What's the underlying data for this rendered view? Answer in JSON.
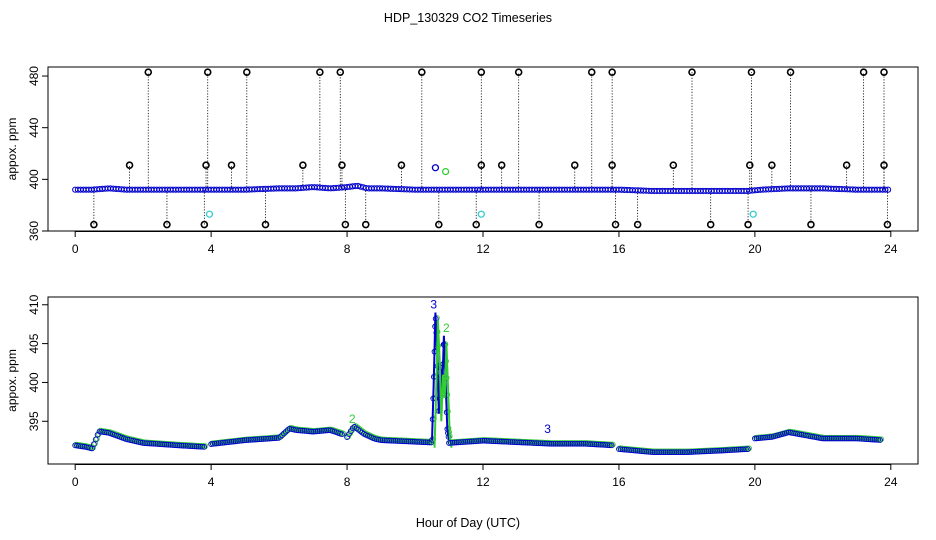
{
  "title": "HDP_130329  CO2 Timeseries",
  "xlabel": "Hour of Day (UTC)",
  "colors": {
    "black": "#000000",
    "blue": "#0000cc",
    "green": "#33cc33",
    "cyan": "#33cccc"
  },
  "chart_data": [
    {
      "type": "scatter",
      "panel": "top",
      "ylabel": "appox. ppm",
      "xlim": [
        -0.8,
        24.8
      ],
      "ylim": [
        360,
        487
      ],
      "xticks": [
        0,
        4,
        8,
        12,
        16,
        20,
        24
      ],
      "yticks": [
        360,
        400,
        440,
        480
      ],
      "baseline": {
        "x": [
          0,
          0.5,
          1,
          1.5,
          2,
          3,
          4,
          5,
          6,
          6.5,
          7,
          7.5,
          8,
          8.3,
          8.6,
          9,
          10,
          11,
          12,
          13,
          14,
          15,
          16,
          17,
          18,
          19,
          19.8,
          20.2,
          21,
          22,
          23,
          24
        ],
        "y": [
          392,
          392,
          393,
          392,
          392,
          392,
          392,
          392,
          393,
          393,
          394,
          393,
          394,
          395,
          393,
          393,
          392,
          392,
          392,
          392,
          392,
          392,
          392,
          391,
          391,
          391,
          391,
          392,
          393,
          393,
          392,
          392
        ]
      },
      "spikes_high": {
        "y": 483,
        "x": [
          2.15,
          3.9,
          5.05,
          7.2,
          7.8,
          10.2,
          11.95,
          13.05,
          15.2,
          15.8,
          18.15,
          19.9,
          21.05,
          23.2,
          23.8
        ]
      },
      "spikes_mid": {
        "y": 411,
        "x": [
          1.6,
          3.85,
          4.6,
          6.7,
          7.85,
          9.6,
          11.95,
          12.55,
          14.7,
          15.8,
          17.6,
          19.85,
          20.5,
          22.7,
          23.8
        ]
      },
      "spikes_low": {
        "y": 365,
        "x": [
          0.55,
          2.7,
          3.8,
          5.6,
          7.95,
          8.55,
          10.7,
          11.8,
          13.65,
          15.9,
          16.55,
          18.7,
          19.8,
          21.65,
          23.9
        ]
      },
      "cyan_points": {
        "x": [
          3.95,
          11.95,
          19.95
        ],
        "y": [
          373,
          373,
          373
        ]
      },
      "blue_points": {
        "x": [
          10.6
        ],
        "y": [
          409
        ]
      },
      "green_points": {
        "x": [
          10.9
        ],
        "y": [
          406
        ]
      }
    },
    {
      "type": "line",
      "panel": "bottom",
      "ylabel": "appox. ppm",
      "xlim": [
        -0.8,
        24.8
      ],
      "ylim": [
        389.5,
        411
      ],
      "xticks": [
        0,
        4,
        8,
        12,
        16,
        20,
        24
      ],
      "yticks": [
        395,
        400,
        405,
        410
      ],
      "segments": [
        {
          "x": [
            0,
            0.3,
            0.5,
            0.7,
            1,
            1.5,
            2,
            3,
            3.8
          ],
          "y": [
            392.2,
            392,
            391.8,
            394,
            393.8,
            393,
            392.5,
            392.2,
            392
          ]
        },
        {
          "x": [
            4,
            5,
            6,
            6.3,
            6.5,
            7,
            7.5,
            7.9
          ],
          "y": [
            392,
            392.5,
            392.8,
            394,
            393.8,
            393.6,
            393.8,
            393.2
          ]
        },
        {
          "x": [
            8,
            8.2,
            8.5,
            8.8,
            9,
            10,
            10.5
          ],
          "y": [
            393.2,
            394.6,
            393.6,
            393,
            392.8,
            392.6,
            392.5
          ]
        },
        {
          "x": [
            10.5,
            10.55,
            10.6,
            10.65,
            10.7,
            10.75,
            10.8,
            10.85,
            10.9,
            10.95,
            11
          ],
          "y": [
            392.6,
            400,
            409,
            404,
            396,
            402,
            399,
            406,
            400,
            394,
            392.6
          ]
        },
        {
          "x": [
            11,
            12,
            13,
            14,
            15,
            15.8
          ],
          "y": [
            392.5,
            392.8,
            392.6,
            392.4,
            392.4,
            392.2
          ]
        },
        {
          "x": [
            16,
            17,
            18,
            19,
            19.8
          ],
          "y": [
            391.6,
            391.2,
            391.2,
            391.4,
            391.6
          ]
        },
        {
          "x": [
            20,
            20.5,
            21,
            21.5,
            22,
            23,
            23.7
          ],
          "y": [
            392.6,
            392.8,
            393.4,
            393,
            392.6,
            392.6,
            392.4
          ]
        }
      ],
      "labels": [
        {
          "text": "3",
          "x": 10.55,
          "y": 409.5,
          "color": "blue"
        },
        {
          "text": "2",
          "x": 10.92,
          "y": 406.5,
          "color": "green"
        },
        {
          "text": "3",
          "x": 13.9,
          "y": 393.5,
          "color": "blue"
        },
        {
          "text": "2",
          "x": 8.15,
          "y": 394.8,
          "color": "green"
        }
      ]
    }
  ]
}
